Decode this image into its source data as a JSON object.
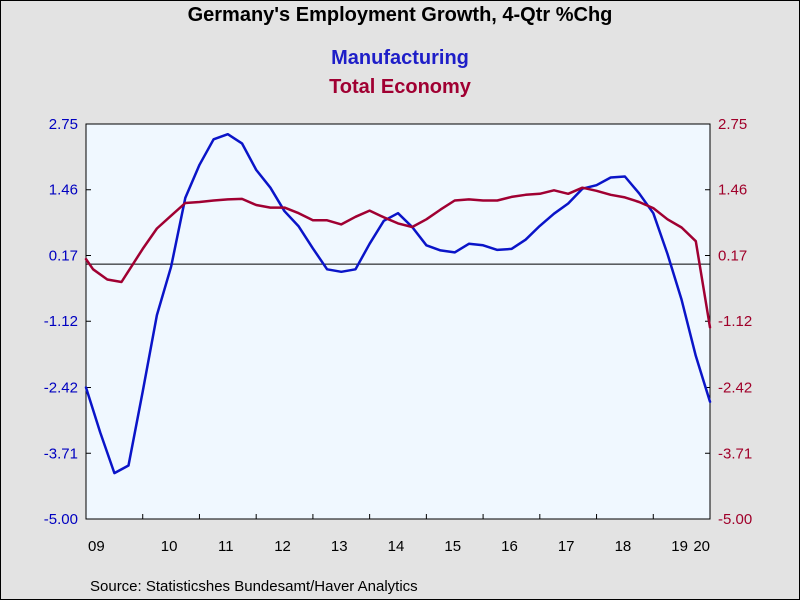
{
  "chart_data": {
    "type": "line",
    "title": "Germany's Employment Growth, 4-Qtr %Chg",
    "source": "Source:  Statisticshes Bundesamt/Haver Analytics",
    "ylim": [
      -5.0,
      2.75
    ],
    "yticks": [
      "2.75",
      "1.46",
      "0.17",
      "-1.12",
      "-2.42",
      "-3.71",
      "-5.00"
    ],
    "ytick_values": [
      2.75,
      1.46,
      0.17,
      -1.12,
      -2.42,
      -3.71,
      -5.0
    ],
    "xticks": [
      "09",
      "10",
      "11",
      "12",
      "13",
      "14",
      "15",
      "16",
      "17",
      "18",
      "19",
      "20"
    ],
    "xlim": [
      2009.0,
      2020.0
    ],
    "zero_line": 0,
    "colors": {
      "axis_left": "#0000c0",
      "axis_right": "#a0002a",
      "plot_bg": "#f0f8ff"
    },
    "series": [
      {
        "name": "Manufacturing",
        "color": "#0a14c8",
        "x": [
          2009.0,
          2009.25,
          2009.5,
          2009.75,
          2010.0,
          2010.25,
          2010.5,
          2010.75,
          2011.0,
          2011.25,
          2011.5,
          2011.75,
          2012.0,
          2012.25,
          2012.5,
          2012.75,
          2013.0,
          2013.25,
          2013.5,
          2013.75,
          2014.0,
          2014.25,
          2014.5,
          2014.75,
          2015.0,
          2015.25,
          2015.5,
          2015.75,
          2016.0,
          2016.25,
          2016.5,
          2016.75,
          2017.0,
          2017.25,
          2017.5,
          2017.75,
          2018.0,
          2018.25,
          2018.5,
          2018.75,
          2019.0,
          2019.25,
          2019.5,
          2019.75,
          2020.0
        ],
        "values": [
          -2.42,
          -3.3,
          -4.1,
          -3.95,
          -2.5,
          -1.0,
          -0.05,
          1.3,
          1.95,
          2.45,
          2.55,
          2.37,
          1.85,
          1.5,
          1.04,
          0.74,
          0.31,
          -0.1,
          -0.15,
          -0.1,
          0.4,
          0.85,
          1.0,
          0.73,
          0.37,
          0.27,
          0.23,
          0.4,
          0.37,
          0.28,
          0.3,
          0.48,
          0.75,
          0.99,
          1.19,
          1.48,
          1.55,
          1.7,
          1.72,
          1.39,
          1.0,
          0.2,
          -0.7,
          -1.8,
          -2.7
        ]
      },
      {
        "name": "Total Economy",
        "color": "#a00032",
        "x": [
          2009.0,
          2009.125,
          2009.375,
          2009.625,
          2010.0,
          2010.25,
          2010.5,
          2010.75,
          2011.0,
          2011.25,
          2011.5,
          2011.75,
          2012.0,
          2012.25,
          2012.5,
          2012.75,
          2013.0,
          2013.25,
          2013.5,
          2013.75,
          2014.0,
          2014.25,
          2014.5,
          2014.75,
          2015.0,
          2015.25,
          2015.5,
          2015.75,
          2016.0,
          2016.25,
          2016.5,
          2016.75,
          2017.0,
          2017.25,
          2017.5,
          2017.75,
          2018.0,
          2018.25,
          2018.5,
          2018.75,
          2019.0,
          2019.25,
          2019.5,
          2019.75,
          2020.0
        ],
        "values": [
          0.1,
          -0.1,
          -0.3,
          -0.35,
          0.3,
          0.7,
          0.95,
          1.2,
          1.22,
          1.25,
          1.27,
          1.28,
          1.16,
          1.11,
          1.11,
          1.0,
          0.86,
          0.86,
          0.78,
          0.93,
          1.05,
          0.92,
          0.8,
          0.73,
          0.88,
          1.07,
          1.25,
          1.27,
          1.25,
          1.25,
          1.32,
          1.36,
          1.38,
          1.45,
          1.38,
          1.5,
          1.44,
          1.36,
          1.31,
          1.22,
          1.1,
          0.88,
          0.72,
          0.45,
          -1.24
        ]
      }
    ]
  }
}
